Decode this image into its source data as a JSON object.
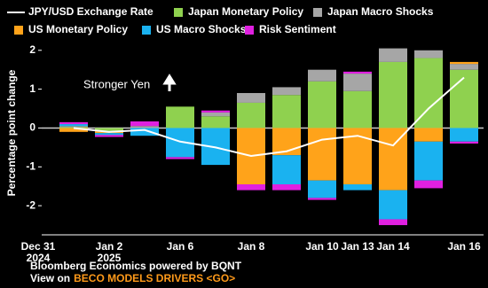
{
  "chart_data": {
    "type": "bar-line",
    "categories": [
      "Dec 31 2024",
      null,
      "Jan 2 2025",
      null,
      "Jan 6",
      null,
      "Jan 8",
      null,
      "Jan 10",
      "Jan 13",
      "Jan 14",
      null,
      "Jan 16"
    ],
    "y_label": "Percentage point change",
    "annotation": "Stronger Yen",
    "ylim": [
      -2.75,
      2.2
    ],
    "yticks": [
      -2,
      -1,
      0,
      1,
      2
    ],
    "legend": "top",
    "series": [
      {
        "name": "JPY/USD Exchange Rate",
        "type": "line",
        "color": "#ffffff",
        "values": [
          null,
          0,
          -0.1,
          -0.05,
          -0.35,
          -0.5,
          -0.72,
          -0.6,
          -0.3,
          -0.2,
          -0.45,
          0.5,
          1.3
        ]
      },
      {
        "name": "Japan Monetary Policy",
        "type": "bar",
        "color": "#8fd14f",
        "values": [
          null,
          0.02,
          -0.08,
          0,
          0.55,
          0.3,
          0.65,
          0.85,
          1.2,
          0.95,
          1.7,
          1.8,
          1.5
        ]
      },
      {
        "name": "Japan Macro Shocks",
        "type": "bar",
        "color": "#a6a6a6",
        "values": [
          null,
          0.03,
          0,
          0.05,
          0,
          0.1,
          0.25,
          0.2,
          0.3,
          0.45,
          0.35,
          0.2,
          0.15
        ]
      },
      {
        "name": "US Monetary Policy",
        "type": "bar",
        "color": "#ffa31a",
        "values": [
          null,
          -0.1,
          -0.05,
          0,
          0,
          0,
          -1.45,
          -0.7,
          -1.35,
          -1.45,
          -1.6,
          -0.35,
          0.05
        ]
      },
      {
        "name": "US Macro Shocks",
        "type": "bar",
        "color": "#1ab2f0",
        "values": [
          null,
          0.05,
          -0.05,
          -0.2,
          -0.75,
          -0.95,
          0,
          -0.75,
          -0.45,
          -0.15,
          -0.75,
          -1.0,
          -0.35
        ]
      },
      {
        "name": "Risk Sentiment",
        "type": "bar",
        "color": "#e020e0",
        "values": [
          null,
          0.05,
          -0.05,
          0.12,
          -0.05,
          0.05,
          -0.15,
          -0.15,
          -0.05,
          0.05,
          -0.15,
          -0.2,
          -0.05
        ]
      }
    ]
  },
  "footer": {
    "source": "Bloomberg Economics powered by BQNT",
    "link_prefix": "View on",
    "link": "BECO MODELS DRIVERS <GO>"
  }
}
